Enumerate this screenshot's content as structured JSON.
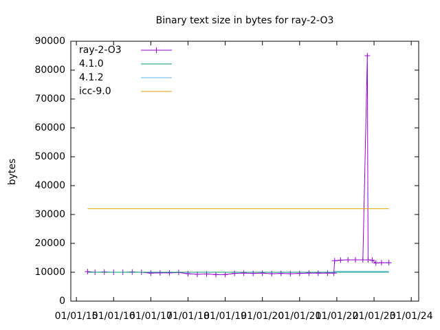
{
  "chart_data": {
    "type": "line",
    "title": "Binary text size in bytes for ray-2-O3",
    "y_label": "bytes",
    "xlim": [
      2014.85,
      2024.2
    ],
    "ylim": [
      0,
      90000
    ],
    "yticks": [
      0,
      10000,
      20000,
      30000,
      40000,
      50000,
      60000,
      70000,
      80000,
      90000
    ],
    "xticks": [
      {
        "value": 2015,
        "label": "01/01/15"
      },
      {
        "value": 2016,
        "label": "01/01/16"
      },
      {
        "value": 2017,
        "label": "01/01/17"
      },
      {
        "value": 2018,
        "label": "01/01/18"
      },
      {
        "value": 2019,
        "label": "01/01/19"
      },
      {
        "value": 2020,
        "label": "01/01/20"
      },
      {
        "value": 2021,
        "label": "01/01/21"
      },
      {
        "value": 2022,
        "label": "01/01/22"
      },
      {
        "value": 2023,
        "label": "01/01/23"
      },
      {
        "value": 2024,
        "label": "01/01/24"
      }
    ],
    "legend": "top-left",
    "series": [
      {
        "name": "ray-2-O3",
        "color": "#9400d3",
        "markers": true,
        "x": [
          2015.3,
          2015.5,
          2015.75,
          2016.0,
          2016.25,
          2016.5,
          2016.75,
          2017.0,
          2017.25,
          2017.5,
          2017.75,
          2018.0,
          2018.25,
          2018.5,
          2018.75,
          2019.0,
          2019.25,
          2019.5,
          2019.75,
          2020.0,
          2020.25,
          2020.5,
          2020.75,
          2021.0,
          2021.25,
          2021.5,
          2021.75,
          2021.92,
          2021.94,
          2022.1,
          2022.3,
          2022.5,
          2022.7,
          2022.82,
          2022.84,
          2022.95,
          2023.05,
          2023.2,
          2023.4
        ],
        "values": [
          10200,
          10000,
          10100,
          10000,
          10000,
          10100,
          10000,
          9700,
          9800,
          9800,
          9900,
          9500,
          9300,
          9400,
          9200,
          9200,
          9600,
          9700,
          9600,
          9700,
          9500,
          9600,
          9500,
          9600,
          9700,
          9700,
          9700,
          9700,
          14000,
          14200,
          14300,
          14300,
          14300,
          85000,
          14300,
          14200,
          13200,
          13300,
          13300
        ]
      },
      {
        "name": "4.1.0",
        "color": "#009e73",
        "markers": false,
        "x": [
          2015.3,
          2023.4
        ],
        "values": [
          10000,
          10000
        ]
      },
      {
        "name": "4.1.2",
        "color": "#56b4e9",
        "markers": false,
        "x": [
          2021.92,
          2023.4
        ],
        "values": [
          10300,
          10300
        ]
      },
      {
        "name": "icc-9.0",
        "color": "#e69f00",
        "markers": false,
        "x": [
          2015.3,
          2023.4
        ],
        "values": [
          32000,
          32000
        ]
      }
    ]
  }
}
